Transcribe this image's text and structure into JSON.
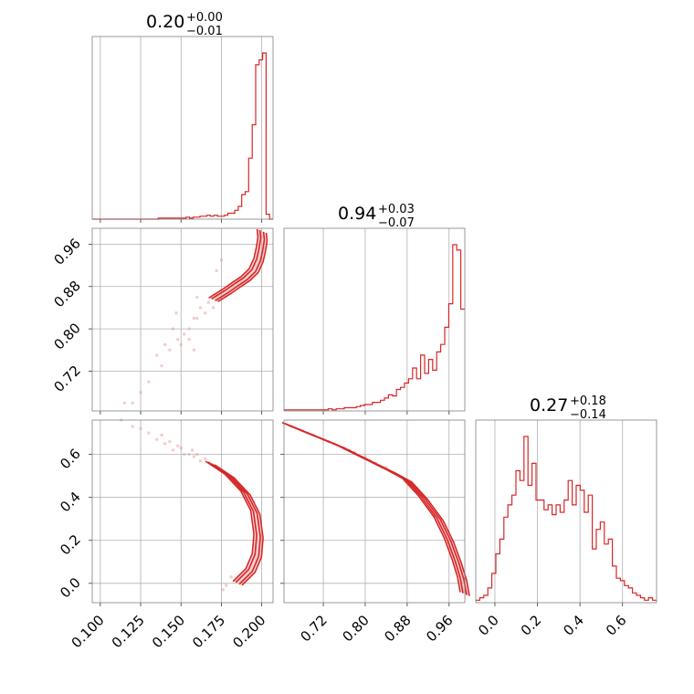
{
  "chart_data": {
    "type": "corner",
    "color": "#d62728",
    "grid": true,
    "titles": [
      {
        "median": "0.20",
        "plus": "+0.00",
        "minus": "−0.01"
      },
      {
        "median": "0.94",
        "plus": "+0.03",
        "minus": "−0.07"
      },
      {
        "median": "0.27",
        "plus": "+0.18",
        "minus": "−0.14"
      }
    ],
    "params": [
      {
        "range": [
          0.095,
          0.207
        ],
        "ticks": [
          0.1,
          0.125,
          0.15,
          0.175,
          0.2
        ],
        "tick_labels": [
          "0.100",
          "0.125",
          "0.150",
          "0.175",
          "0.200"
        ]
      },
      {
        "range": [
          0.645,
          0.99
        ],
        "ticks": [
          0.72,
          0.8,
          0.88,
          0.96
        ],
        "tick_labels": [
          "0.72",
          "0.80",
          "0.88",
          "0.96"
        ]
      },
      {
        "range": [
          -0.09,
          0.76
        ],
        "ticks": [
          0.0,
          0.2,
          0.4,
          0.6
        ],
        "tick_labels": [
          "0.0",
          "0.2",
          "0.4",
          "0.6"
        ]
      }
    ],
    "hist_1d": [
      {
        "edges_start": 0.095,
        "edges_end": 0.207,
        "counts": [
          0,
          0,
          0,
          0,
          0,
          0,
          0,
          0,
          0,
          0,
          0,
          0,
          0,
          0,
          0,
          0,
          0,
          0,
          0,
          1,
          1,
          1,
          1,
          1,
          1,
          1,
          1,
          2,
          1,
          2,
          2,
          3,
          3,
          4,
          3,
          4,
          3,
          3,
          4,
          6,
          6,
          9,
          13,
          25,
          28,
          62,
          96,
          157,
          162,
          169,
          5,
          0
        ]
      },
      {
        "edges_start": 0.645,
        "edges_end": 0.99,
        "counts": [
          1,
          1,
          1,
          1,
          1,
          1,
          1,
          1,
          1,
          1,
          1,
          2,
          1,
          2,
          2,
          3,
          3,
          3,
          4,
          5,
          6,
          6,
          8,
          8,
          10,
          12,
          15,
          14,
          20,
          22,
          26,
          30,
          40,
          30,
          52,
          35,
          48,
          38,
          55,
          62,
          78,
          100,
          155,
          150,
          95
        ]
      },
      {
        "edges_start": -0.09,
        "edges_end": 0.76,
        "counts": [
          1,
          2,
          3,
          6,
          12,
          20,
          26,
          35,
          40,
          44,
          54,
          50,
          68,
          48,
          57,
          42,
          42,
          38,
          40,
          36,
          40,
          37,
          42,
          50,
          40,
          48,
          46,
          37,
          44,
          22,
          30,
          33,
          24,
          26,
          15,
          10,
          9,
          7,
          6,
          4,
          3,
          2,
          1,
          2,
          1
        ]
      }
    ],
    "pairs": [
      {
        "x_param": 0,
        "y_param": 1,
        "ridge": [
          [
            0.2,
            0.985
          ],
          [
            0.2005,
            0.97
          ],
          [
            0.1995,
            0.95
          ],
          [
            0.198,
            0.93
          ],
          [
            0.195,
            0.91
          ],
          [
            0.19,
            0.895
          ],
          [
            0.185,
            0.885
          ],
          [
            0.178,
            0.87
          ],
          [
            0.17,
            0.855
          ]
        ],
        "scatter": [
          [
            0.167,
            0.85
          ],
          [
            0.165,
            0.83
          ],
          [
            0.162,
            0.84
          ],
          [
            0.16,
            0.82
          ],
          [
            0.158,
            0.82
          ],
          [
            0.155,
            0.8
          ],
          [
            0.152,
            0.79
          ],
          [
            0.155,
            0.78
          ],
          [
            0.15,
            0.77
          ],
          [
            0.148,
            0.78
          ],
          [
            0.145,
            0.8
          ],
          [
            0.14,
            0.77
          ],
          [
            0.138,
            0.73
          ],
          [
            0.135,
            0.75
          ],
          [
            0.13,
            0.7
          ],
          [
            0.125,
            0.68
          ],
          [
            0.12,
            0.66
          ],
          [
            0.115,
            0.66
          ],
          [
            0.147,
            0.83
          ],
          [
            0.143,
            0.76
          ],
          [
            0.16,
            0.86
          ],
          [
            0.158,
            0.76
          ],
          [
            0.175,
            0.93
          ],
          [
            0.172,
            0.91
          ],
          [
            0.17,
            0.84
          ]
        ]
      },
      {
        "x_param": 0,
        "y_param": 2,
        "ridge": [
          [
            0.168,
            0.56
          ],
          [
            0.18,
            0.5
          ],
          [
            0.19,
            0.42
          ],
          [
            0.196,
            0.33
          ],
          [
            0.198,
            0.22
          ],
          [
            0.197,
            0.13
          ],
          [
            0.193,
            0.06
          ],
          [
            0.185,
            0.0
          ]
        ],
        "scatter": [
          [
            0.165,
            0.58
          ],
          [
            0.16,
            0.6
          ],
          [
            0.157,
            0.62
          ],
          [
            0.152,
            0.6
          ],
          [
            0.15,
            0.63
          ],
          [
            0.148,
            0.64
          ],
          [
            0.145,
            0.62
          ],
          [
            0.14,
            0.65
          ],
          [
            0.135,
            0.67
          ],
          [
            0.13,
            0.7
          ],
          [
            0.125,
            0.72
          ],
          [
            0.12,
            0.73
          ],
          [
            0.113,
            0.76
          ],
          [
            0.155,
            0.6
          ],
          [
            0.162,
            0.57
          ],
          [
            0.158,
            0.59
          ],
          [
            0.181,
            0.03
          ],
          [
            0.178,
            -0.01
          ],
          [
            0.176,
            -0.03
          ],
          [
            0.143,
            0.66
          ],
          [
            0.138,
            0.69
          ]
        ]
      },
      {
        "x_param": 1,
        "y_param": 2,
        "ridge": [
          [
            0.65,
            0.74
          ],
          [
            0.7,
            0.69
          ],
          [
            0.75,
            0.64
          ],
          [
            0.8,
            0.58
          ],
          [
            0.85,
            0.52
          ],
          [
            0.88,
            0.48
          ],
          [
            0.91,
            0.4
          ],
          [
            0.94,
            0.3
          ],
          [
            0.96,
            0.2
          ],
          [
            0.975,
            0.1
          ],
          [
            0.985,
            0.02
          ],
          [
            0.99,
            -0.05
          ]
        ],
        "scatter": [
          [
            0.66,
            0.73
          ],
          [
            0.68,
            0.71
          ],
          [
            0.7,
            0.69
          ],
          [
            0.72,
            0.67
          ],
          [
            0.74,
            0.65
          ],
          [
            0.76,
            0.63
          ],
          [
            0.78,
            0.61
          ],
          [
            0.8,
            0.59
          ],
          [
            0.82,
            0.56
          ],
          [
            0.84,
            0.54
          ],
          [
            0.69,
            0.7
          ],
          [
            0.73,
            0.66
          ],
          [
            0.77,
            0.62
          ],
          [
            0.81,
            0.57
          ]
        ]
      }
    ]
  }
}
